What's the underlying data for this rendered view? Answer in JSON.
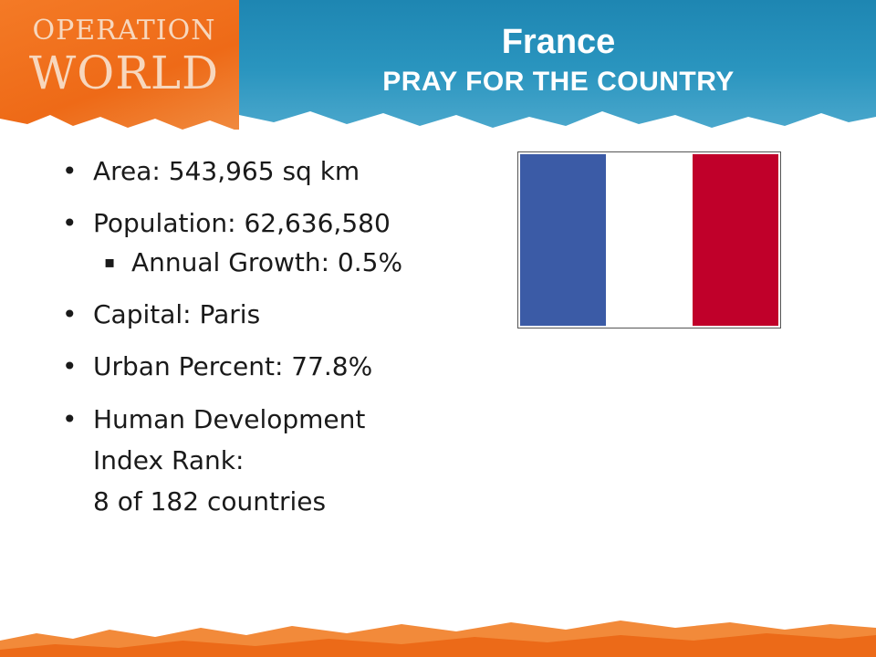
{
  "logo": {
    "line1": "OPERATION",
    "line2": "WORLD"
  },
  "header": {
    "title": "France",
    "subtitle": "PRAY FOR THE COUNTRY"
  },
  "facts": [
    {
      "text": "Area: 543,965 sq km"
    },
    {
      "text": "Population: 62,636,580"
    },
    {
      "text": "Annual Growth: 0.5%"
    },
    {
      "text": "Capital: Paris"
    },
    {
      "text": "Urban Percent: 77.8%"
    },
    {
      "line1": "Human Development",
      "line2": "Index Rank:",
      "line3": "8 of 182 countries"
    }
  ],
  "bullets": {
    "main": "•",
    "sub": "▪"
  },
  "flag": {
    "colors": [
      "#3b5ba6",
      "#ffffff",
      "#c0002a"
    ]
  },
  "colors": {
    "banner_blue": "#1e86b2",
    "banner_orange": "#f47a26",
    "title_text": "#ffffff"
  }
}
